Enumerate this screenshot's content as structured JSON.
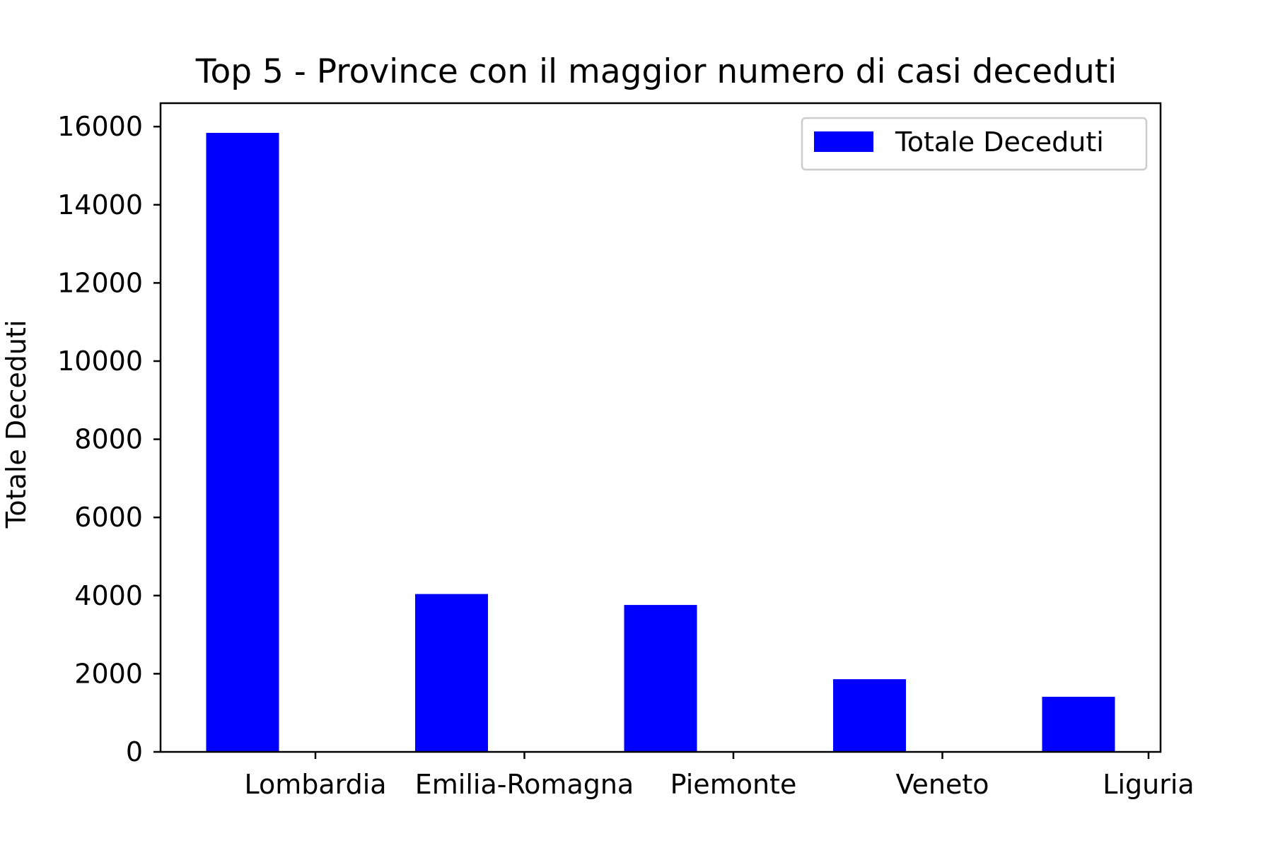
{
  "chart_data": {
    "type": "bar",
    "title": "Top 5 - Province con il maggior numero di casi deceduti",
    "xlabel": "",
    "ylabel": "Totale Deceduti",
    "categories": [
      "Lombardia",
      "Emilia-Romagna",
      "Piemonte",
      "Veneto",
      "Liguria"
    ],
    "series": [
      {
        "name": "Totale Deceduti",
        "values": [
          15840,
          4040,
          3760,
          1860,
          1410
        ]
      }
    ],
    "ylim": [
      0,
      16600
    ],
    "yticks": [
      0,
      2000,
      4000,
      6000,
      8000,
      10000,
      12000,
      14000,
      16000
    ],
    "ytick_labels": [
      "0",
      "2000",
      "4000",
      "6000",
      "8000",
      "10000",
      "12000",
      "14000",
      "16000"
    ],
    "grid": false,
    "legend": "top-right",
    "colors": {
      "bar": "#0000ff",
      "axes": "#000000",
      "legend_border": "#cccccc",
      "background": "#ffffff"
    }
  }
}
